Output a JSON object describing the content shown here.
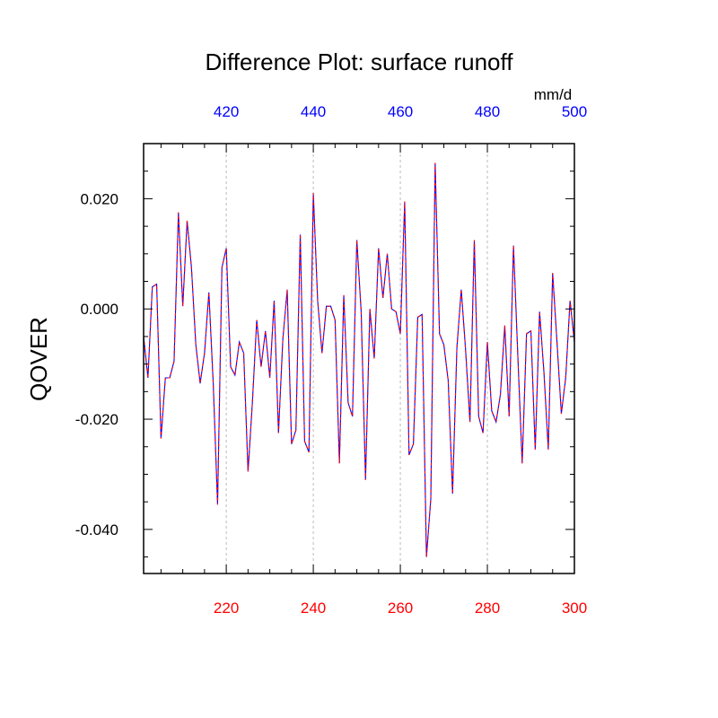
{
  "chart_data": {
    "type": "line",
    "title": "Difference Plot: surface runoff",
    "units": "mm/d",
    "ylabel": "QOVER",
    "xlim": [
      201,
      300
    ],
    "ylim": [
      -0.048,
      0.03
    ],
    "top_xlim": [
      401,
      500
    ],
    "bottom_ticks": [
      220,
      240,
      260,
      280,
      300
    ],
    "top_ticks": [
      420,
      440,
      460,
      480,
      500
    ],
    "y_ticks": [
      0.02,
      0.0,
      -0.02,
      -0.04
    ],
    "y_tick_labels": [
      "0.020",
      "0.000",
      "-0.020",
      "-0.040"
    ],
    "grid": "vertical dashed at major bottom ticks",
    "colors": {
      "bottom_axis": "#ff0000",
      "top_axis": "#0000ff",
      "series_a": "#0000ff",
      "series_b": "#ff0000",
      "grid": "#bbbbbb"
    },
    "series": [
      {
        "x": [
          201,
          202,
          203,
          204,
          205,
          206,
          207,
          208,
          209,
          210,
          211,
          212,
          213,
          214,
          215,
          216,
          217,
          218,
          219,
          220,
          221,
          222,
          223,
          224,
          225,
          226,
          227,
          228,
          229,
          230,
          231,
          232,
          233,
          234,
          235,
          236,
          237,
          238,
          239,
          240,
          241,
          242,
          243,
          244,
          245,
          246,
          247,
          248,
          249,
          250,
          251,
          252,
          253,
          254,
          255,
          256,
          257,
          258,
          259,
          260,
          261,
          262,
          263,
          264,
          265,
          266,
          267,
          268,
          269,
          270,
          271,
          272,
          273,
          274,
          275,
          276,
          277,
          278,
          279,
          280,
          281,
          282,
          283,
          284,
          285,
          286,
          287,
          288,
          289,
          290,
          291,
          292,
          293,
          294,
          295,
          296,
          297,
          298,
          299,
          300
        ],
        "values": [
          -0.005,
          -0.0125,
          0.004,
          0.0045,
          -0.0235,
          -0.0125,
          -0.0125,
          -0.0095,
          0.0175,
          0.0005,
          0.016,
          0.0075,
          -0.0065,
          -0.0135,
          -0.008,
          0.003,
          -0.0135,
          -0.0355,
          0.0075,
          0.011,
          -0.0105,
          -0.012,
          -0.006,
          -0.008,
          -0.0295,
          -0.017,
          -0.002,
          -0.0105,
          -0.004,
          -0.0125,
          0.0015,
          -0.0225,
          -0.0055,
          0.0035,
          -0.0245,
          -0.022,
          0.0135,
          -0.024,
          -0.026,
          0.021,
          0.0015,
          -0.008,
          0.0005,
          0.0005,
          -0.002,
          -0.028,
          0.0025,
          -0.017,
          -0.0195,
          0.0125,
          -0.0005,
          -0.031,
          0.0,
          -0.009,
          0.011,
          0.002,
          0.01,
          0.0,
          -0.0005,
          -0.0045,
          0.0195,
          -0.0265,
          -0.0245,
          -0.0015,
          -0.001,
          -0.045,
          -0.0345,
          0.0265,
          -0.0045,
          -0.0065,
          -0.013,
          -0.0335,
          -0.007,
          0.0035,
          -0.0075,
          -0.0205,
          0.0125,
          -0.0195,
          -0.0225,
          -0.006,
          -0.0185,
          -0.0205,
          -0.0155,
          -0.003,
          -0.0195,
          0.0115,
          -0.0085,
          -0.028,
          -0.0045,
          -0.004,
          -0.0255,
          -0.0005,
          -0.0115,
          -0.0255,
          0.0065,
          -0.006,
          -0.019,
          -0.0125,
          0.0015,
          -0.006
        ]
      }
    ]
  }
}
